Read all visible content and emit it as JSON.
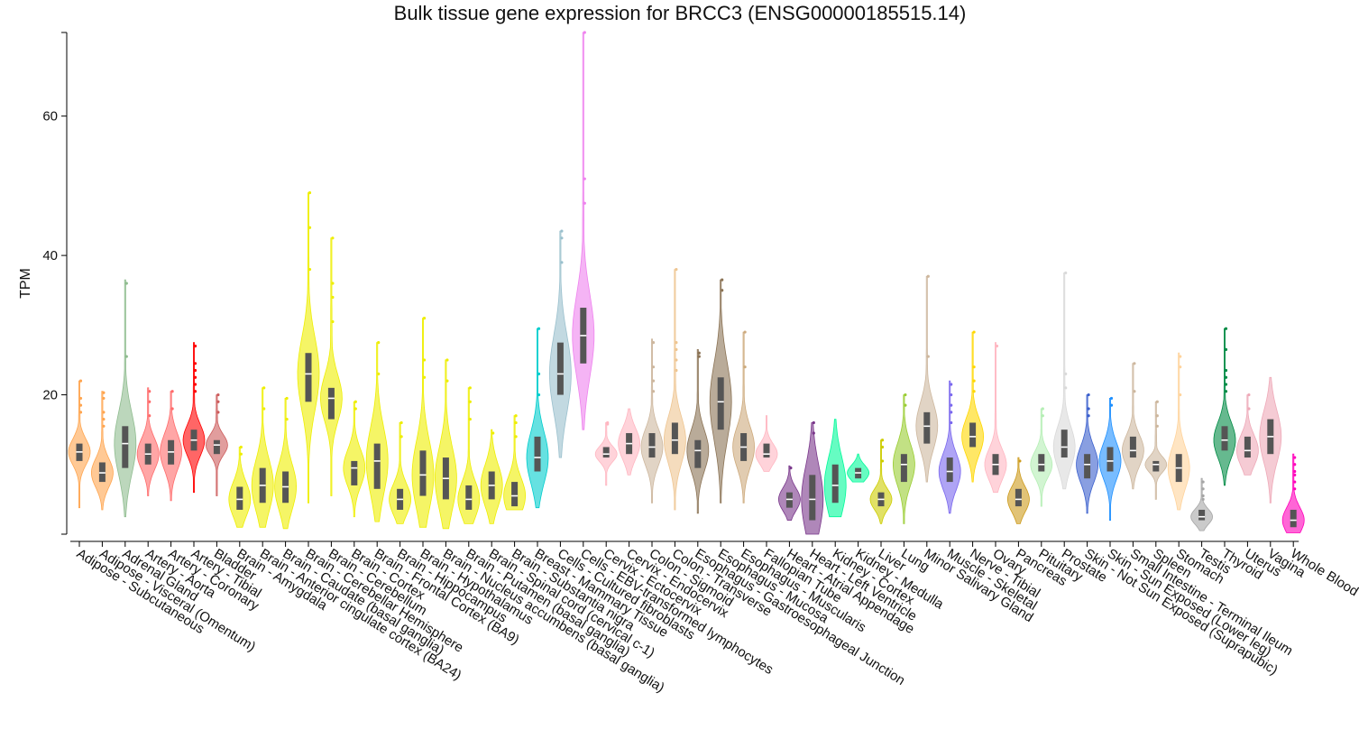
{
  "chart_data": {
    "type": "violin",
    "title": "Bulk tissue gene expression for BRCC3 (ENSG00000185515.14)",
    "xlabel": "",
    "ylabel": "TPM",
    "ylim": [
      0,
      72
    ],
    "yticks": [
      20,
      40,
      60
    ],
    "grid": false,
    "legend": "none",
    "categories": [
      {
        "name": "Adipose - Subcutaneous",
        "color": "#FFA54F",
        "lo": 3.8,
        "q1": 10.5,
        "med": 11.8,
        "q3": 13.0,
        "hi": 22.0,
        "outliers": [
          17.5,
          18.5,
          19.5,
          22.0
        ]
      },
      {
        "name": "Adipose - Visceral (Omentum)",
        "color": "#FFA54F",
        "lo": 3.5,
        "q1": 7.5,
        "med": 8.8,
        "q3": 10.3,
        "hi": 20.5,
        "outliers": [
          15.5,
          16.5,
          17.5,
          19.5,
          20.3
        ]
      },
      {
        "name": "Adrenal Gland",
        "color": "#8FBC8F",
        "lo": 2.5,
        "q1": 9.5,
        "med": 13.0,
        "q3": 15.5,
        "hi": 36.5,
        "outliers": [
          25.5,
          36.0
        ]
      },
      {
        "name": "Artery - Aorta",
        "color": "#FF6A6A",
        "lo": 5.5,
        "q1": 10.0,
        "med": 11.5,
        "q3": 13.0,
        "hi": 21.0,
        "outliers": [
          17.0,
          19.0,
          20.5
        ]
      },
      {
        "name": "Artery - Coronary",
        "color": "#FF6A6A",
        "lo": 4.8,
        "q1": 10.0,
        "med": 11.8,
        "q3": 13.5,
        "hi": 20.5,
        "outliers": [
          18.0,
          20.5
        ]
      },
      {
        "name": "Artery - Tibial",
        "color": "#FF0000",
        "lo": 6.0,
        "q1": 12.0,
        "med": 13.5,
        "q3": 15.0,
        "hi": 27.5,
        "outliers": [
          20.5,
          21.5,
          22.5,
          23.5,
          24.5,
          27.0
        ]
      },
      {
        "name": "Bladder",
        "color": "#CD5C5C",
        "lo": 5.5,
        "q1": 11.5,
        "med": 12.8,
        "q3": 13.5,
        "hi": 20.0,
        "outliers": [
          17.5,
          19.0,
          20.0
        ]
      },
      {
        "name": "Brain - Amygdala",
        "color": "#EEEE00",
        "lo": 1.0,
        "q1": 3.5,
        "med": 5.0,
        "q3": 6.8,
        "hi": 12.5,
        "outliers": [
          11.5,
          12.5
        ]
      },
      {
        "name": "Brain - Anterior cingulate cortex (BA24)",
        "color": "#EEEE00",
        "lo": 1.0,
        "q1": 4.5,
        "med": 7.0,
        "q3": 9.5,
        "hi": 21.0,
        "outliers": [
          18.0,
          21.0
        ]
      },
      {
        "name": "Brain - Caudate (basal ganglia)",
        "color": "#EEEE00",
        "lo": 0.8,
        "q1": 4.5,
        "med": 6.8,
        "q3": 9.0,
        "hi": 19.5,
        "outliers": [
          16.5,
          19.5
        ]
      },
      {
        "name": "Brain - Cerebellar Hemisphere",
        "color": "#EEEE00",
        "lo": 4.5,
        "q1": 19.0,
        "med": 23.0,
        "q3": 26.0,
        "hi": 49.0,
        "outliers": [
          38.0,
          44.0,
          49.0
        ]
      },
      {
        "name": "Brain - Cerebellum",
        "color": "#EEEE00",
        "lo": 5.5,
        "q1": 16.5,
        "med": 19.5,
        "q3": 21.0,
        "hi": 42.5,
        "outliers": [
          30.5,
          34.0,
          36.0,
          42.5
        ]
      },
      {
        "name": "Brain - Cortex",
        "color": "#EEEE00",
        "lo": 2.5,
        "q1": 7.0,
        "med": 9.5,
        "q3": 10.5,
        "hi": 19.0,
        "outliers": [
          18.0,
          19.0
        ]
      },
      {
        "name": "Brain - Frontal Cortex (BA9)",
        "color": "#EEEE00",
        "lo": 1.8,
        "q1": 6.5,
        "med": 10.5,
        "q3": 13.0,
        "hi": 27.5,
        "outliers": [
          23.0,
          27.5
        ]
      },
      {
        "name": "Brain - Hippocampus",
        "color": "#EEEE00",
        "lo": 1.5,
        "q1": 3.5,
        "med": 5.0,
        "q3": 6.5,
        "hi": 16.0,
        "outliers": [
          14.0,
          16.0
        ]
      },
      {
        "name": "Brain - Hypothalamus",
        "color": "#EEEE00",
        "lo": 1.0,
        "q1": 5.5,
        "med": 8.5,
        "q3": 12.0,
        "hi": 31.0,
        "outliers": [
          22.5,
          25.0,
          31.0
        ]
      },
      {
        "name": "Brain - Nucleus accumbens (basal ganglia)",
        "color": "#EEEE00",
        "lo": 0.8,
        "q1": 5.0,
        "med": 8.0,
        "q3": 11.0,
        "hi": 25.0,
        "outliers": [
          22.0,
          25.0
        ]
      },
      {
        "name": "Brain - Putamen (basal ganglia)",
        "color": "#EEEE00",
        "lo": 1.5,
        "q1": 3.5,
        "med": 5.0,
        "q3": 7.0,
        "hi": 21.0,
        "outliers": [
          16.5,
          19.0,
          21.0
        ]
      },
      {
        "name": "Brain - Spinal cord (cervical c-1)",
        "color": "#EEEE00",
        "lo": 1.5,
        "q1": 5.0,
        "med": 7.0,
        "q3": 9.0,
        "hi": 15.0,
        "outliers": [
          14.5
        ]
      },
      {
        "name": "Brain - Substantia nigra",
        "color": "#EEEE00",
        "lo": 3.5,
        "q1": 4.0,
        "med": 5.5,
        "q3": 7.5,
        "hi": 17.0,
        "outliers": [
          14.0,
          16.0,
          17.0
        ]
      },
      {
        "name": "Breast - Mammary Tissue",
        "color": "#00CDCD",
        "lo": 3.8,
        "q1": 9.0,
        "med": 11.0,
        "q3": 14.0,
        "hi": 29.5,
        "outliers": [
          20.0,
          23.0,
          29.5
        ]
      },
      {
        "name": "Cells - Cultured fibroblasts",
        "color": "#9AC0CD",
        "lo": 11.0,
        "q1": 20.0,
        "med": 23.0,
        "q3": 27.5,
        "hi": 43.5,
        "outliers": [
          39.0,
          42.5,
          43.5
        ]
      },
      {
        "name": "Cells - EBV-transformed lymphocytes",
        "color": "#EE82EE",
        "lo": 15.0,
        "q1": 24.5,
        "med": 28.5,
        "q3": 32.5,
        "hi": 72.0,
        "outliers": [
          47.5,
          51.0,
          72.0
        ]
      },
      {
        "name": "Cervix - Ectocervix",
        "color": "#FFB6C1",
        "lo": 7.0,
        "q1": 11.0,
        "med": 11.5,
        "q3": 12.5,
        "hi": 16.0,
        "outliers": [
          15.8,
          16.0
        ]
      },
      {
        "name": "Cervix - Endocervix",
        "color": "#FFB6C1",
        "lo": 8.5,
        "q1": 11.5,
        "med": 13.0,
        "q3": 14.5,
        "hi": 18.0,
        "outliers": []
      },
      {
        "name": "Colon - Sigmoid",
        "color": "#CDB79E",
        "lo": 4.5,
        "q1": 11.0,
        "med": 12.5,
        "q3": 14.5,
        "hi": 28.0,
        "outliers": [
          20.5,
          22.0,
          24.0,
          27.5
        ]
      },
      {
        "name": "Colon - Transverse",
        "color": "#EEC591",
        "lo": 3.5,
        "q1": 11.5,
        "med": 13.5,
        "q3": 16.0,
        "hi": 38.0,
        "outliers": [
          23.5,
          25.0,
          26.5,
          27.5,
          38.0
        ]
      },
      {
        "name": "Esophagus - Gastroesophageal Junction",
        "color": "#8B7355",
        "lo": 3.0,
        "q1": 9.5,
        "med": 12.0,
        "q3": 13.5,
        "hi": 26.5,
        "outliers": [
          25.5,
          26.0
        ]
      },
      {
        "name": "Esophagus - Mucosa",
        "color": "#8B7355",
        "lo": 4.5,
        "q1": 15.0,
        "med": 19.0,
        "q3": 22.5,
        "hi": 36.5,
        "outliers": [
          35.0,
          36.5
        ]
      },
      {
        "name": "Esophagus - Muscularis",
        "color": "#CDAA7D",
        "lo": 4.5,
        "q1": 10.5,
        "med": 12.5,
        "q3": 14.5,
        "hi": 29.0,
        "outliers": [
          24.0,
          29.0
        ]
      },
      {
        "name": "Fallopian Tube",
        "color": "#FFB6C1",
        "lo": 9.0,
        "q1": 11.0,
        "med": 11.5,
        "q3": 13.0,
        "hi": 17.0,
        "outliers": []
      },
      {
        "name": "Heart - Atrial Appendage",
        "color": "#7A378B",
        "lo": 2.0,
        "q1": 3.8,
        "med": 5.0,
        "q3": 6.0,
        "hi": 9.8,
        "outliers": [
          9.5
        ]
      },
      {
        "name": "Heart - Left Ventricle",
        "color": "#7A378B",
        "lo": 0.0,
        "q1": 2.0,
        "med": 5.0,
        "q3": 8.5,
        "hi": 16.0,
        "outliers": [
          14.5,
          16.0
        ]
      },
      {
        "name": "Kidney - Cortex",
        "color": "#00FA9A",
        "lo": 2.5,
        "q1": 4.5,
        "med": 7.0,
        "q3": 10.0,
        "hi": 16.5,
        "outliers": []
      },
      {
        "name": "Kidney - Medulla",
        "color": "#00FA9A",
        "lo": 7.5,
        "q1": 8.0,
        "med": 8.8,
        "q3": 9.5,
        "hi": 11.5,
        "outliers": []
      },
      {
        "name": "Liver",
        "color": "#CDCD00",
        "lo": 1.5,
        "q1": 4.0,
        "med": 5.0,
        "q3": 6.0,
        "hi": 13.5,
        "outliers": [
          10.5,
          12.5,
          13.5
        ]
      },
      {
        "name": "Lung",
        "color": "#9ACD32",
        "lo": 1.5,
        "q1": 7.5,
        "med": 10.0,
        "q3": 11.5,
        "hi": 20.0,
        "outliers": [
          18.5,
          20.0
        ]
      },
      {
        "name": "Minor Salivary Gland",
        "color": "#CDB79E",
        "lo": 7.5,
        "q1": 13.0,
        "med": 15.5,
        "q3": 17.5,
        "hi": 37.0,
        "outliers": [
          25.5,
          37.0
        ]
      },
      {
        "name": "Muscle - Skeletal",
        "color": "#7A67EE",
        "lo": 3.0,
        "q1": 7.5,
        "med": 9.0,
        "q3": 11.0,
        "hi": 22.0,
        "outliers": [
          16.0,
          17.5,
          18.5,
          20.0,
          21.5
        ]
      },
      {
        "name": "Nerve - Tibial",
        "color": "#FFD700",
        "lo": 7.5,
        "q1": 12.5,
        "med": 14.0,
        "q3": 16.0,
        "hi": 29.0,
        "outliers": [
          20.5,
          22.0,
          24.0,
          29.0
        ]
      },
      {
        "name": "Ovary",
        "color": "#FFB6C1",
        "lo": 6.0,
        "q1": 8.5,
        "med": 10.0,
        "q3": 11.5,
        "hi": 27.5,
        "outliers": [
          27.0
        ]
      },
      {
        "name": "Pancreas",
        "color": "#CD9B1D",
        "lo": 1.5,
        "q1": 4.0,
        "med": 5.0,
        "q3": 6.5,
        "hi": 11.0,
        "outliers": [
          10.5
        ]
      },
      {
        "name": "Pituitary",
        "color": "#B4EEB4",
        "lo": 4.0,
        "q1": 9.0,
        "med": 10.0,
        "q3": 11.5,
        "hi": 18.0,
        "outliers": [
          17.0,
          18.0
        ]
      },
      {
        "name": "Prostate",
        "color": "#D9D9D9",
        "lo": 6.5,
        "q1": 11.0,
        "med": 12.5,
        "q3": 15.0,
        "hi": 37.5,
        "outliers": [
          21.0,
          23.0,
          37.5
        ]
      },
      {
        "name": "Skin - Not Sun Exposed (Suprapubic)",
        "color": "#3A5FCD",
        "lo": 3.0,
        "q1": 8.0,
        "med": 10.0,
        "q3": 11.5,
        "hi": 20.0,
        "outliers": [
          17.0,
          18.0,
          20.0
        ]
      },
      {
        "name": "Skin - Sun Exposed (Lower leg)",
        "color": "#1E90FF",
        "lo": 2.0,
        "q1": 9.0,
        "med": 10.5,
        "q3": 12.5,
        "hi": 19.5,
        "outliers": [
          18.5,
          19.5
        ]
      },
      {
        "name": "Small Intestine - Terminal Ileum",
        "color": "#CDB79E",
        "lo": 6.5,
        "q1": 11.0,
        "med": 12.0,
        "q3": 14.0,
        "hi": 24.5,
        "outliers": [
          20.5,
          24.5
        ]
      },
      {
        "name": "Spleen",
        "color": "#CDB79E",
        "lo": 5.0,
        "q1": 9.0,
        "med": 10.0,
        "q3": 10.5,
        "hi": 19.0,
        "outliers": [
          15.5,
          17.0,
          19.0
        ]
      },
      {
        "name": "Stomach",
        "color": "#FFD39B",
        "lo": 3.5,
        "q1": 7.5,
        "med": 9.5,
        "q3": 11.5,
        "hi": 26.0,
        "outliers": [
          20.0,
          24.0,
          25.5
        ]
      },
      {
        "name": "Testis",
        "color": "#A6A6A6",
        "lo": 0.5,
        "q1": 2.0,
        "med": 2.5,
        "q3": 3.5,
        "hi": 8.0,
        "outliers": [
          5.0,
          5.5,
          6.5,
          7.5
        ]
      },
      {
        "name": "Thyroid",
        "color": "#008B45",
        "lo": 7.0,
        "q1": 12.0,
        "med": 13.5,
        "q3": 15.5,
        "hi": 29.5,
        "outliers": [
          20.5,
          21.5,
          22.5,
          23.5,
          26.5,
          29.5
        ]
      },
      {
        "name": "Uterus",
        "color": "#EEA9B8",
        "lo": 8.5,
        "q1": 11.0,
        "med": 12.0,
        "q3": 14.0,
        "hi": 20.0,
        "outliers": [
          18.0,
          20.0
        ]
      },
      {
        "name": "Vagina",
        "color": "#EEA9B8",
        "lo": 4.5,
        "q1": 11.5,
        "med": 14.0,
        "q3": 16.5,
        "hi": 22.5,
        "outliers": []
      },
      {
        "name": "Whole Blood",
        "color": "#FF00BB",
        "lo": 0.2,
        "q1": 1.0,
        "med": 2.0,
        "q3": 3.5,
        "hi": 11.5,
        "outliers": [
          6.5,
          7.5,
          8.5,
          9.0,
          10.0,
          11.0
        ]
      }
    ]
  }
}
